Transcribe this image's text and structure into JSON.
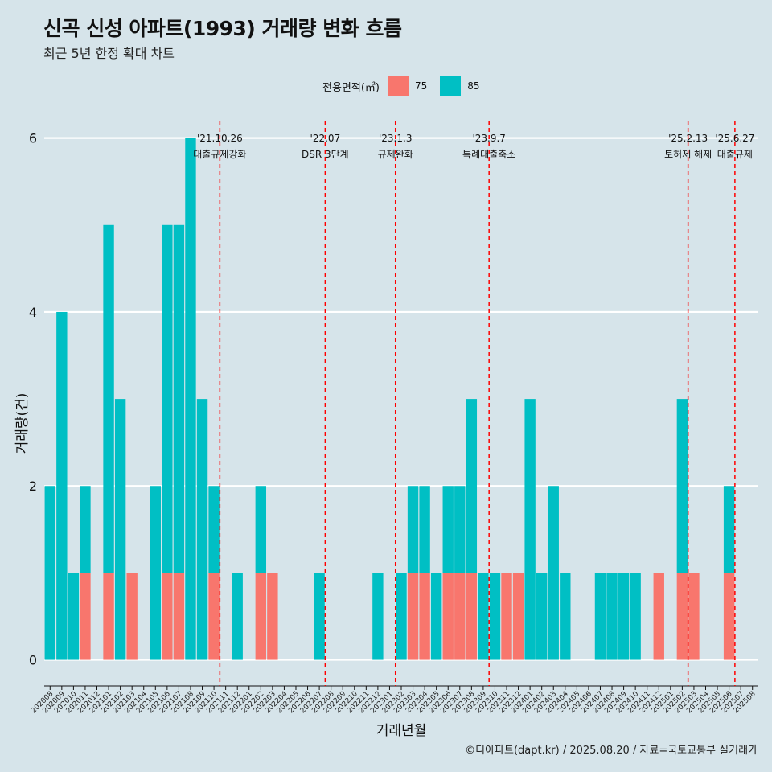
{
  "title": "신곡 신성 아파트(1993) 거래량 변화 흐름",
  "subtitle": "최근 5년 한정 확대 차트",
  "footer": "©디아파트(dapt.kr) / 2025.08.20 / 자료=국토교통부 실거래가",
  "legend": {
    "title": "전용면적(㎡)",
    "items": [
      {
        "label": "75",
        "color": "#f8766d"
      },
      {
        "label": "85",
        "color": "#00bfc4"
      }
    ]
  },
  "chart_data": {
    "type": "bar",
    "stacked": true,
    "xlabel": "거래년월",
    "ylabel": "거래량(건)",
    "ylim": [
      -0.3,
      6.2
    ],
    "yticks": [
      0,
      2,
      4,
      6
    ],
    "grid": true,
    "legend_position": "top",
    "categories": [
      "202008",
      "202009",
      "202010",
      "202011",
      "202012",
      "202101",
      "202102",
      "202103",
      "202104",
      "202105",
      "202106",
      "202107",
      "202108",
      "202109",
      "202110",
      "202111",
      "202112",
      "202201",
      "202202",
      "202203",
      "202204",
      "202205",
      "202206",
      "202207",
      "202208",
      "202209",
      "202210",
      "202211",
      "202212",
      "202301",
      "202302",
      "202303",
      "202304",
      "202305",
      "202306",
      "202307",
      "202308",
      "202309",
      "202310",
      "202311",
      "202312",
      "202401",
      "202402",
      "202403",
      "202404",
      "202405",
      "202406",
      "202407",
      "202408",
      "202409",
      "202410",
      "202411",
      "202412",
      "202501",
      "202502",
      "202503",
      "202504",
      "202505",
      "202506",
      "202507",
      "202508"
    ],
    "series": [
      {
        "name": "75",
        "color": "#f8766d",
        "values": [
          0,
          0,
          0,
          1,
          0,
          1,
          0,
          1,
          0,
          0,
          1,
          1,
          0,
          0,
          1,
          0,
          0,
          0,
          1,
          1,
          0,
          0,
          0,
          0,
          0,
          0,
          0,
          0,
          0,
          0,
          0,
          1,
          1,
          0,
          1,
          1,
          1,
          0,
          0,
          1,
          1,
          0,
          0,
          0,
          0,
          0,
          0,
          0,
          0,
          0,
          0,
          0,
          1,
          0,
          1,
          1,
          0,
          0,
          1,
          0,
          0
        ]
      },
      {
        "name": "85",
        "color": "#00bfc4",
        "values": [
          2,
          4,
          1,
          1,
          0,
          4,
          3,
          0,
          0,
          2,
          4,
          4,
          6,
          3,
          1,
          0,
          1,
          0,
          1,
          0,
          0,
          0,
          0,
          1,
          0,
          0,
          0,
          0,
          1,
          0,
          1,
          1,
          1,
          1,
          1,
          1,
          2,
          1,
          1,
          0,
          0,
          3,
          1,
          2,
          1,
          0,
          0,
          1,
          1,
          1,
          1,
          0,
          0,
          0,
          2,
          0,
          0,
          0,
          1,
          0,
          0
        ]
      }
    ],
    "events": [
      {
        "date": "'21.10.26",
        "label": "대출규제강화",
        "after": "202110"
      },
      {
        "date": "'22.07",
        "label": "DSR 3단계",
        "after": "202207"
      },
      {
        "date": "'23.1.3",
        "label": "규제완화",
        "after": "202301"
      },
      {
        "date": "'23.9.7",
        "label": "특례대출축소",
        "after": "202309"
      },
      {
        "date": "'25.2.13",
        "label": "토허제 해제",
        "after": "202502"
      },
      {
        "date": "'25.6.27",
        "label": "대출규제",
        "after": "202506"
      }
    ]
  }
}
